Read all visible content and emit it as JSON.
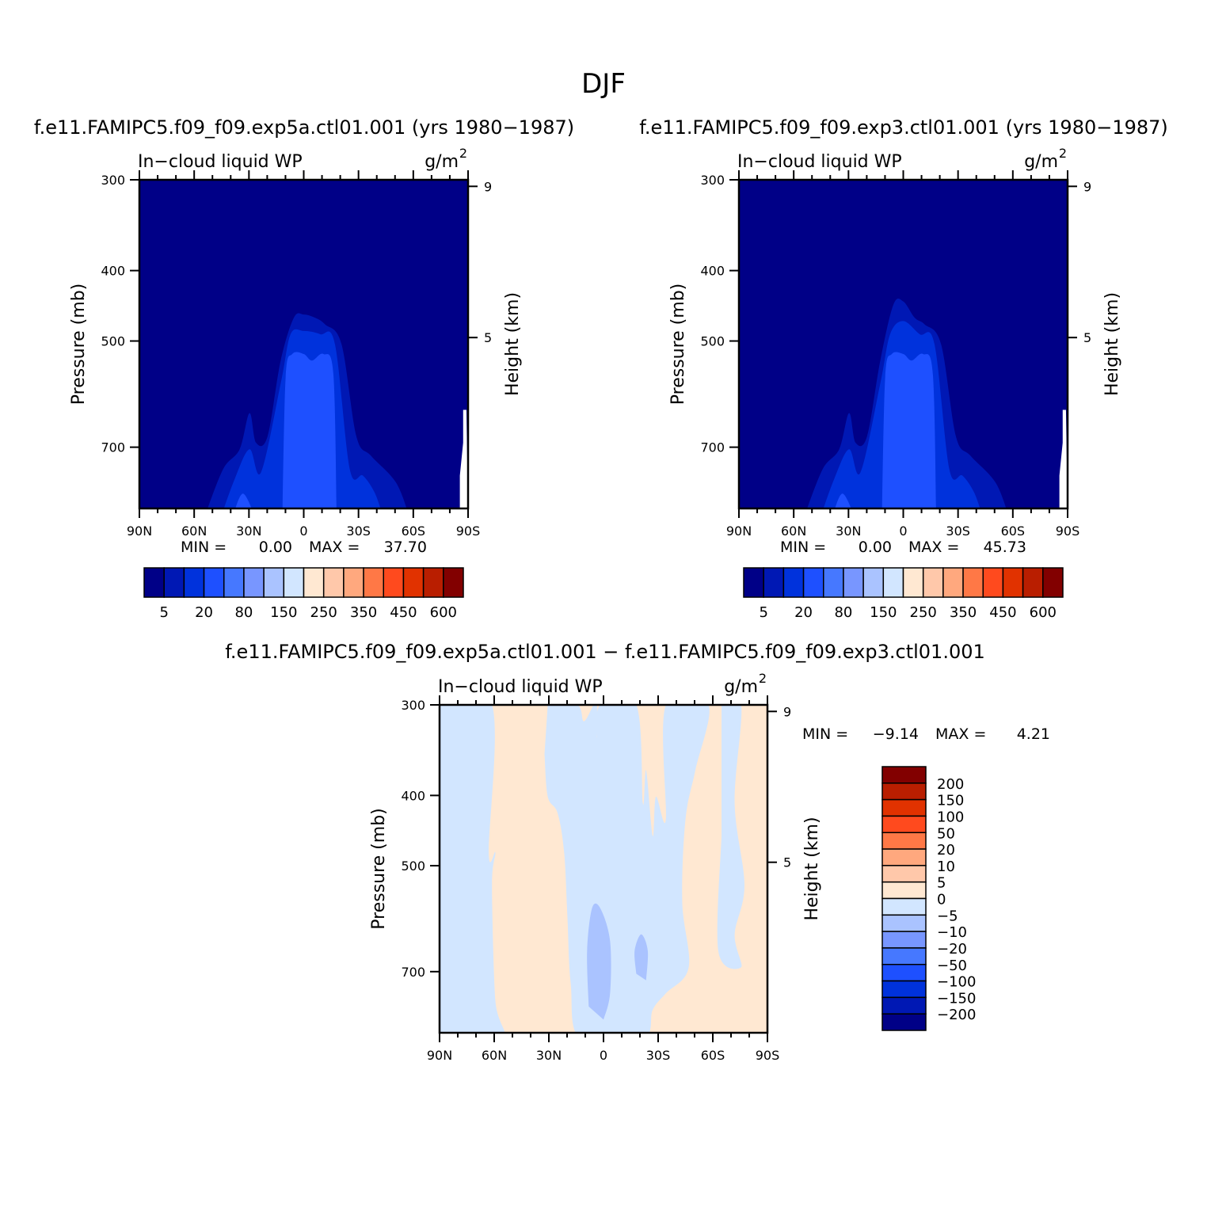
{
  "figure": {
    "title": "DJF"
  },
  "chart_data": [
    {
      "type": "heatmap",
      "title": "f.e11.FAMIPC5.f09_f09.exp5a.ctl01.001 (yrs 1980-1987)",
      "subtitle_left": "In-cloud liquid WP",
      "units": "g/m",
      "units_sup": "2",
      "xlabel": "",
      "ylabel": "Pressure (mb)",
      "ylabel_right": "Height (km)",
      "x_ticklabels": [
        "90N",
        "60N",
        "30N",
        "0",
        "30S",
        "60S",
        "90S"
      ],
      "y_ticklabels": [
        "300",
        "400",
        "500",
        "700"
      ],
      "y_ticklabels_right": [
        "9",
        "5"
      ],
      "min_label": "MIN =",
      "min_value": "0.00",
      "max_label": "MAX =",
      "max_value": "37.70",
      "colorbar_labels": [
        "5",
        "20",
        "80",
        "150",
        "250",
        "350",
        "450",
        "600"
      ],
      "contour_levels": [
        1,
        5,
        10,
        20,
        50,
        80,
        100,
        150,
        200,
        250,
        300,
        350,
        400,
        450,
        500,
        600
      ],
      "ylim": [
        300,
        850
      ],
      "xlim": [
        "90N",
        "90S"
      ],
      "max_location": {
        "latitude": "5S",
        "pressure_mb": 850,
        "value": 37.7
      }
    },
    {
      "type": "heatmap",
      "title": "f.e11.FAMIPC5.f09_f09.exp3.ctl01.001 (yrs 1980-1987)",
      "subtitle_left": "In-cloud liquid WP",
      "units": "g/m",
      "units_sup": "2",
      "xlabel": "",
      "ylabel": "Pressure (mb)",
      "ylabel_right": "Height (km)",
      "x_ticklabels": [
        "90N",
        "60N",
        "30N",
        "0",
        "30S",
        "60S",
        "90S"
      ],
      "y_ticklabels": [
        "300",
        "400",
        "500",
        "700"
      ],
      "y_ticklabels_right": [
        "9",
        "5"
      ],
      "min_label": "MIN =",
      "min_value": "0.00",
      "max_label": "MAX =",
      "max_value": "45.73",
      "colorbar_labels": [
        "5",
        "20",
        "80",
        "150",
        "250",
        "350",
        "450",
        "600"
      ],
      "contour_levels": [
        1,
        5,
        10,
        20,
        50,
        80,
        100,
        150,
        200,
        250,
        300,
        350,
        400,
        450,
        500,
        600
      ],
      "ylim": [
        300,
        850
      ],
      "xlim": [
        "90N",
        "90S"
      ],
      "max_location": {
        "latitude": "5S",
        "pressure_mb": 850,
        "value": 45.73
      }
    },
    {
      "type": "heatmap",
      "title": "f.e11.FAMIPC5.f09_f09.exp5a.ctl01.001 - f.e11.FAMIPC5.f09_f09.exp3.ctl01.001",
      "subtitle_left": "In-cloud liquid WP",
      "units": "g/m",
      "units_sup": "2",
      "xlabel": "",
      "ylabel": "Pressure (mb)",
      "ylabel_right": "Height (km)",
      "x_ticklabels": [
        "90N",
        "60N",
        "30N",
        "0",
        "30S",
        "60S",
        "90S"
      ],
      "y_ticklabels": [
        "300",
        "400",
        "500",
        "700"
      ],
      "y_ticklabels_right": [
        "9",
        "5"
      ],
      "min_label": "MIN =",
      "min_value": "-9.14",
      "max_label": "MAX =",
      "max_value": "4.21",
      "colorbar_labels": [
        "200",
        "150",
        "100",
        "50",
        "20",
        "10",
        "5",
        "0",
        "-5",
        "-10",
        "-20",
        "-50",
        "-100",
        "-150",
        "-200"
      ],
      "ylim": [
        300,
        850
      ],
      "xlim": [
        "90N",
        "90S"
      ]
    }
  ],
  "colors": {
    "seq": [
      "#000087",
      "#0018b4",
      "#0032dc",
      "#1e50ff",
      "#4678ff",
      "#7896ff",
      "#aac3ff",
      "#d2e6ff",
      "#ffe8d2",
      "#ffc8aa",
      "#ffa87e",
      "#ff7846",
      "#ff4a1e",
      "#e13200",
      "#b91e00",
      "#820000"
    ],
    "div": [
      "#820000",
      "#b91e00",
      "#e13200",
      "#ff4a1e",
      "#ff7846",
      "#ffa87e",
      "#ffc8aa",
      "#ffe8d2",
      "#d2e6ff",
      "#aac3ff",
      "#7896ff",
      "#4678ff",
      "#1e50ff",
      "#0032dc",
      "#0018b4",
      "#000087"
    ]
  }
}
